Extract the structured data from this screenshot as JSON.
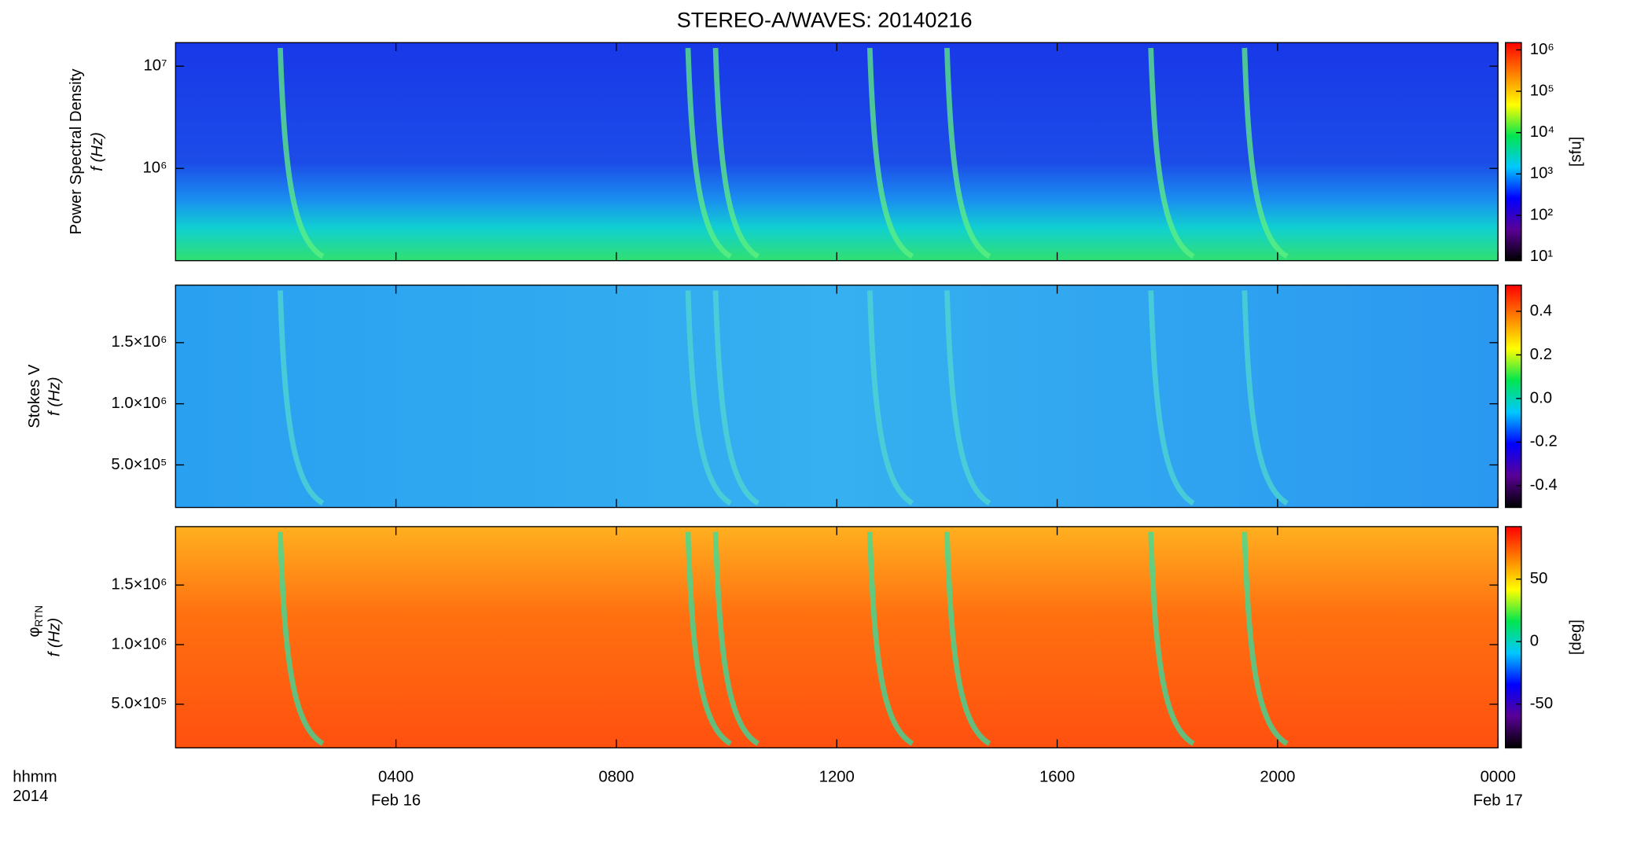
{
  "chart_data": [
    {
      "type": "spectrogram",
      "title": "STEREO-A/WAVES: 20140216",
      "ylabel": [
        "Power Spectral Density",
        "f (Hz)"
      ],
      "yscale": "log",
      "ylim": [
        125000,
        17000000
      ],
      "yticks": [
        {
          "value": 1000000,
          "label": "10⁶"
        },
        {
          "value": 10000000,
          "label": "10⁷"
        }
      ],
      "cscale": "log",
      "clim": [
        8,
        1500000
      ],
      "cticks": [
        {
          "value": 10,
          "label": "10¹"
        },
        {
          "value": 100,
          "label": "10²"
        },
        {
          "value": 1000,
          "label": "10³"
        },
        {
          "value": 10000,
          "label": "10⁴"
        },
        {
          "value": 100000,
          "label": "10⁵"
        },
        {
          "value": 1000000,
          "label": "10⁶"
        }
      ],
      "clabel": "[sfu]",
      "colormap": [
        "#000000",
        "#5a0096",
        "#0000ff",
        "#00c8ff",
        "#00e650",
        "#ffff00",
        "#ff8000",
        "#ff0000"
      ]
    },
    {
      "type": "spectrogram",
      "ylabel": [
        "Stokes V",
        "f (Hz)"
      ],
      "yscale": "linear",
      "ylim": [
        152000,
        1970000
      ],
      "yticks": [
        {
          "value": 500000,
          "label": "5.0×10⁵"
        },
        {
          "value": 1000000,
          "label": "1.0×10⁶"
        },
        {
          "value": 1500000,
          "label": "1.5×10⁶"
        }
      ],
      "cscale": "linear",
      "clim": [
        -0.5,
        0.52
      ],
      "cticks": [
        -0.4,
        -0.2,
        {
          "value": 0,
          "label": "0.0"
        },
        0.2,
        0.4
      ],
      "colormap": [
        "#000000",
        "#5a0096",
        "#0000ff",
        "#00c8ff",
        "#00e650",
        "#ffff00",
        "#ff8000",
        "#ff0000"
      ]
    },
    {
      "type": "spectrogram",
      "ylabel": [
        "φ",
        "RTN",
        "f (Hz)"
      ],
      "yscale": "linear",
      "ylim": [
        134000,
        1990000
      ],
      "yticks": [
        {
          "value": 500000,
          "label": "5.0×10⁵"
        },
        {
          "value": 1000000,
          "label": "1.0×10⁶"
        },
        {
          "value": 1500000,
          "label": "1.5×10⁶"
        }
      ],
      "cscale": "linear",
      "clim": [
        -85,
        92
      ],
      "cticks": [
        -50,
        0,
        50
      ],
      "clabel": "[deg]",
      "colormap": [
        "#000000",
        "#5a0096",
        "#0000ff",
        "#00c8ff",
        "#00e650",
        "#ffff00",
        "#ff8000",
        "#ff0000"
      ],
      "xlabel": [
        "hhmm",
        "2014"
      ],
      "xlim": [
        0,
        24
      ],
      "xticks": [
        {
          "value": 4,
          "label": "0400"
        },
        {
          "value": 8,
          "label": "0800"
        },
        {
          "value": 12,
          "label": "1200"
        },
        {
          "value": 16,
          "label": "1600"
        },
        {
          "value": 20,
          "label": "2000"
        },
        {
          "value": 24,
          "label": "0000"
        }
      ],
      "xtick_dates": [
        {
          "value": 4,
          "label": "Feb 16"
        },
        {
          "value": 24,
          "label": "Feb 17"
        }
      ]
    }
  ]
}
